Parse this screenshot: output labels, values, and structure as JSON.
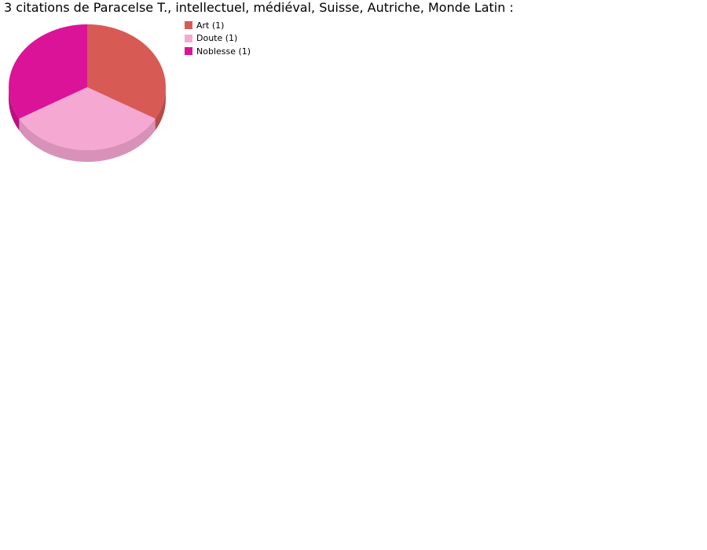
{
  "chart_data": {
    "type": "pie",
    "title": "3 citations de Paracelse T., intellectuel, médiéval, Suisse, Autriche, Monde Latin :",
    "style": "3d",
    "legend_position": "right",
    "slices": [
      {
        "label": "Art (1)",
        "value": 1,
        "color": "#d75a55",
        "side_color": "#b84a47"
      },
      {
        "label": "Doute (1)",
        "value": 1,
        "color": "#f5a8d2",
        "side_color": "#d892b8"
      },
      {
        "label": "Noblesse (1)",
        "value": 1,
        "color": "#db1398",
        "side_color": "#bb1082"
      }
    ]
  }
}
